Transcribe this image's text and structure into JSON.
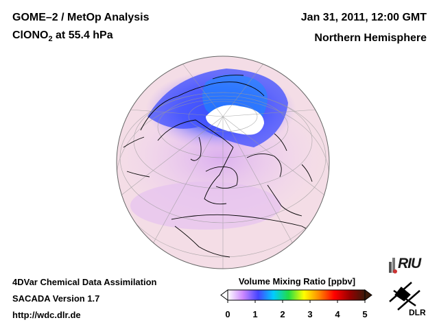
{
  "header": {
    "left_line1": "GOME–2 / MetOp Analysis",
    "left_line2_species": "ClONO",
    "left_line2_sub": "2",
    "left_line2_rest": " at 55.4 hPa",
    "right_line1": "Jan 31, 2011, 12:00 GMT",
    "right_line2": "Northern Hemisphere"
  },
  "footer": {
    "line1": "4DVar Chemical Data Assimilation",
    "line2": "SACADA Version 1.7",
    "line3": "http://wdc.dlr.de"
  },
  "colorbar": {
    "title": "Volume Mixing Ratio [ppbv]",
    "ticks": [
      "0",
      "1",
      "2",
      "3",
      "4",
      "5"
    ],
    "tick_values": [
      0,
      1,
      2,
      3,
      4,
      5
    ],
    "range": [
      0,
      5
    ],
    "colors": [
      "#ffffff",
      "#cc88ff",
      "#4444ff",
      "#00ccff",
      "#22dd44",
      "#ffff00",
      "#ff8800",
      "#ff0000",
      "#990000",
      "#3a1a0a"
    ]
  },
  "logos": {
    "riu": "RIU",
    "dlr": "DLR"
  },
  "map": {
    "projection": "orthographic",
    "hemisphere": "Northern Hemisphere",
    "background_color": "#f4dde6",
    "polar_vortex_color": "#3a55ff",
    "polar_core_color": "#ffffff"
  }
}
